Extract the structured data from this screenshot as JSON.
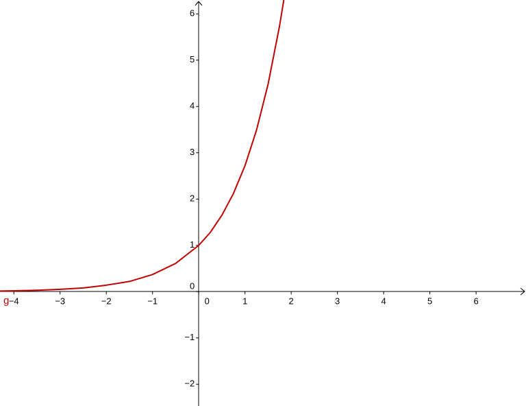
{
  "chart_data": {
    "type": "line",
    "x": [
      -4.3,
      -4,
      -3.5,
      -3,
      -2.5,
      -2,
      -1.5,
      -1,
      -0.5,
      0,
      0.25,
      0.5,
      0.75,
      1,
      1.25,
      1.5,
      1.75,
      1.84
    ],
    "series": [
      {
        "name": "g",
        "color": "#c00000",
        "values": [
          0.014,
          0.018,
          0.03,
          0.05,
          0.08,
          0.14,
          0.22,
          0.37,
          0.61,
          1,
          1.28,
          1.65,
          2.12,
          2.72,
          3.49,
          4.48,
          5.75,
          6.3
        ]
      }
    ],
    "xlim": [
      -4.3,
      7.08
    ],
    "ylim": [
      -2.47,
      6.3
    ],
    "xticks": [
      {
        "value": -4,
        "label": "−4"
      },
      {
        "value": -3,
        "label": "−3"
      },
      {
        "value": -2,
        "label": "−2"
      },
      {
        "value": -1,
        "label": "−1"
      },
      0,
      1,
      2,
      3,
      4,
      5,
      6
    ],
    "yticks": [
      {
        "value": -2,
        "label": "−2"
      },
      {
        "value": -1,
        "label": "−1"
      },
      0,
      1,
      2,
      3,
      4,
      5,
      6
    ]
  }
}
